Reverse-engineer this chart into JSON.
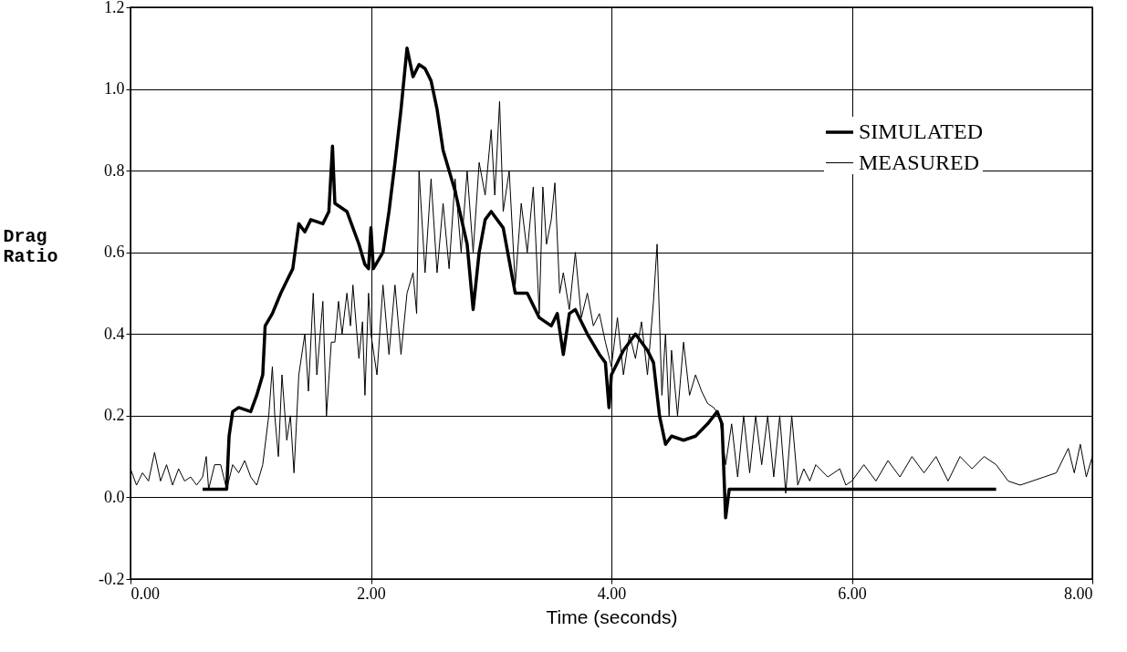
{
  "chart_data": {
    "type": "line",
    "xlabel": "Time  (seconds)",
    "ylabel": "Drag\nRatio",
    "xlim": [
      0,
      8
    ],
    "ylim": [
      -0.2,
      1.2
    ],
    "xticks": [
      {
        "value": 0,
        "label": "0.00"
      },
      {
        "value": 2,
        "label": "2.00"
      },
      {
        "value": 4,
        "label": "4.00"
      },
      {
        "value": 6,
        "label": "6.00"
      },
      {
        "value": 8,
        "label": "8.00"
      }
    ],
    "yticks": [
      {
        "value": -0.2,
        "label": "-0.2"
      },
      {
        "value": 0,
        "label": "0.0"
      },
      {
        "value": 0.2,
        "label": "0.2"
      },
      {
        "value": 0.4,
        "label": "0.4"
      },
      {
        "value": 0.6,
        "label": "0.6"
      },
      {
        "value": 0.8,
        "label": "0.8"
      },
      {
        "value": 1.0,
        "label": "1.0"
      },
      {
        "value": 1.2,
        "label": "1.2"
      }
    ],
    "grid": true,
    "legend": "top right",
    "marker": "none",
    "line_style": "solid",
    "series": [
      {
        "name": "SIMULATED",
        "color": "#000000",
        "x": [
          0.6,
          0.8,
          0.82,
          0.85,
          0.9,
          1.0,
          1.05,
          1.1,
          1.12,
          1.18,
          1.25,
          1.3,
          1.35,
          1.4,
          1.45,
          1.5,
          1.6,
          1.65,
          1.68,
          1.7,
          1.8,
          1.9,
          1.95,
          1.98,
          2.0,
          2.02,
          2.1,
          2.15,
          2.2,
          2.25,
          2.3,
          2.35,
          2.4,
          2.45,
          2.5,
          2.55,
          2.6,
          2.7,
          2.8,
          2.85,
          2.9,
          2.95,
          3.0,
          3.1,
          3.15,
          3.2,
          3.3,
          3.4,
          3.5,
          3.55,
          3.6,
          3.65,
          3.7,
          3.8,
          3.9,
          3.95,
          3.98,
          4.0,
          4.1,
          4.2,
          4.3,
          4.35,
          4.4,
          4.45,
          4.5,
          4.6,
          4.7,
          4.8,
          4.88,
          4.92,
          4.95,
          4.98,
          5.0,
          7.2
        ],
        "values": [
          0.02,
          0.02,
          0.15,
          0.21,
          0.22,
          0.21,
          0.25,
          0.3,
          0.42,
          0.45,
          0.5,
          0.53,
          0.56,
          0.67,
          0.65,
          0.68,
          0.67,
          0.7,
          0.86,
          0.72,
          0.7,
          0.62,
          0.57,
          0.56,
          0.66,
          0.56,
          0.6,
          0.7,
          0.82,
          0.95,
          1.1,
          1.03,
          1.06,
          1.05,
          1.02,
          0.95,
          0.85,
          0.75,
          0.62,
          0.46,
          0.6,
          0.68,
          0.7,
          0.66,
          0.58,
          0.5,
          0.5,
          0.44,
          0.42,
          0.45,
          0.35,
          0.45,
          0.46,
          0.4,
          0.35,
          0.33,
          0.22,
          0.3,
          0.36,
          0.4,
          0.36,
          0.33,
          0.2,
          0.13,
          0.15,
          0.14,
          0.15,
          0.18,
          0.21,
          0.18,
          -0.05,
          0.02,
          0.02,
          0.02
        ]
      },
      {
        "name": "MEASURED",
        "color": "#000000",
        "x": [
          0,
          0.05,
          0.1,
          0.15,
          0.2,
          0.25,
          0.3,
          0.35,
          0.4,
          0.45,
          0.5,
          0.55,
          0.6,
          0.63,
          0.65,
          0.7,
          0.75,
          0.8,
          0.85,
          0.9,
          0.95,
          1.0,
          1.05,
          1.1,
          1.15,
          1.18,
          1.2,
          1.23,
          1.26,
          1.3,
          1.33,
          1.36,
          1.4,
          1.45,
          1.48,
          1.52,
          1.55,
          1.6,
          1.63,
          1.67,
          1.7,
          1.73,
          1.76,
          1.8,
          1.83,
          1.85,
          1.9,
          1.93,
          1.95,
          1.98,
          2.0,
          2.05,
          2.1,
          2.15,
          2.2,
          2.25,
          2.3,
          2.35,
          2.38,
          2.4,
          2.45,
          2.5,
          2.55,
          2.6,
          2.65,
          2.7,
          2.75,
          2.8,
          2.85,
          2.9,
          2.95,
          3.0,
          3.03,
          3.07,
          3.1,
          3.15,
          3.2,
          3.25,
          3.3,
          3.35,
          3.4,
          3.43,
          3.46,
          3.5,
          3.53,
          3.57,
          3.6,
          3.65,
          3.7,
          3.75,
          3.8,
          3.85,
          3.9,
          3.95,
          4.0,
          4.05,
          4.1,
          4.15,
          4.2,
          4.25,
          4.3,
          4.35,
          4.38,
          4.42,
          4.45,
          4.48,
          4.5,
          4.55,
          4.6,
          4.65,
          4.7,
          4.75,
          4.8,
          4.85,
          4.9,
          4.95,
          5.0,
          5.05,
          5.1,
          5.15,
          5.2,
          5.25,
          5.3,
          5.35,
          5.4,
          5.45,
          5.5,
          5.55,
          5.6,
          5.65,
          5.7,
          5.8,
          5.9,
          5.95,
          6.0,
          6.1,
          6.2,
          6.3,
          6.4,
          6.5,
          6.6,
          6.7,
          6.8,
          6.9,
          7.0,
          7.1,
          7.2,
          7.3,
          7.4,
          7.5,
          7.6,
          7.7,
          7.8,
          7.85,
          7.9,
          7.95,
          8.0
        ],
        "values": [
          0.07,
          0.03,
          0.06,
          0.04,
          0.11,
          0.04,
          0.08,
          0.03,
          0.07,
          0.04,
          0.05,
          0.03,
          0.05,
          0.1,
          0.02,
          0.08,
          0.08,
          0.02,
          0.08,
          0.06,
          0.09,
          0.05,
          0.03,
          0.08,
          0.2,
          0.32,
          0.2,
          0.1,
          0.3,
          0.14,
          0.2,
          0.06,
          0.3,
          0.4,
          0.26,
          0.5,
          0.3,
          0.48,
          0.2,
          0.38,
          0.38,
          0.48,
          0.4,
          0.5,
          0.42,
          0.52,
          0.34,
          0.43,
          0.25,
          0.5,
          0.4,
          0.3,
          0.52,
          0.35,
          0.52,
          0.35,
          0.5,
          0.55,
          0.45,
          0.8,
          0.55,
          0.78,
          0.55,
          0.72,
          0.56,
          0.78,
          0.6,
          0.8,
          0.6,
          0.82,
          0.74,
          0.9,
          0.74,
          0.97,
          0.7,
          0.8,
          0.52,
          0.72,
          0.6,
          0.76,
          0.45,
          0.76,
          0.62,
          0.68,
          0.77,
          0.5,
          0.55,
          0.46,
          0.6,
          0.44,
          0.5,
          0.42,
          0.45,
          0.38,
          0.32,
          0.44,
          0.3,
          0.4,
          0.34,
          0.43,
          0.3,
          0.48,
          0.62,
          0.25,
          0.4,
          0.2,
          0.36,
          0.2,
          0.38,
          0.25,
          0.3,
          0.26,
          0.23,
          0.22,
          0.2,
          0.08,
          0.18,
          0.05,
          0.2,
          0.06,
          0.2,
          0.08,
          0.2,
          0.05,
          0.2,
          0.01,
          0.2,
          0.03,
          0.07,
          0.04,
          0.08,
          0.05,
          0.07,
          0.03,
          0.04,
          0.08,
          0.04,
          0.09,
          0.05,
          0.1,
          0.06,
          0.1,
          0.04,
          0.1,
          0.07,
          0.1,
          0.08,
          0.04,
          0.03,
          0.04,
          0.05,
          0.06,
          0.12,
          0.06,
          0.13,
          0.05,
          0.1
        ]
      }
    ]
  }
}
